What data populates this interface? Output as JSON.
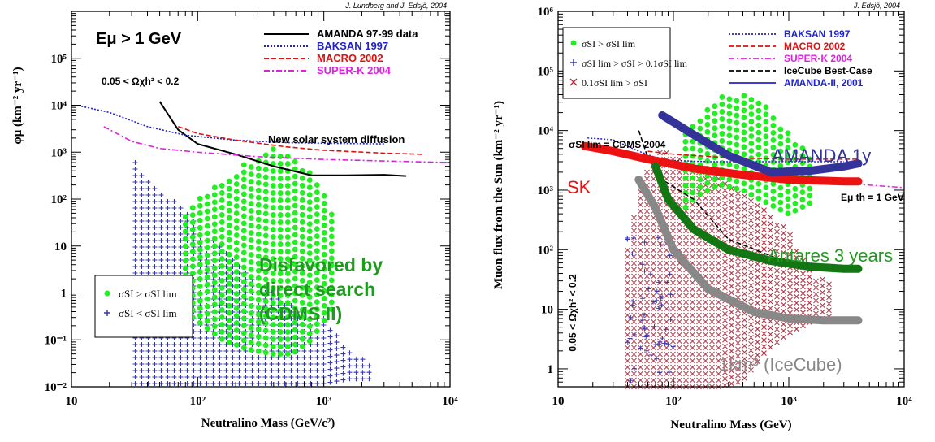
{
  "chart_data": [
    {
      "type": "scatter",
      "credit": "J. Lundberg and J. Edsjö, 2004",
      "ylabel": "φμ (km⁻² yr⁻¹)",
      "xlabel": "Neutralino Mass (GeV/c²)",
      "xscale": "log",
      "yscale": "log",
      "xlim": [
        10,
        10000
      ],
      "ylim": [
        0.01,
        1000000
      ],
      "xticks": [
        {
          "v": 10,
          "label": "10"
        },
        {
          "v": 100,
          "label": "10²"
        },
        {
          "v": 1000,
          "label": "10³"
        },
        {
          "v": 10000,
          "label": "10⁴"
        }
      ],
      "yticks": [
        {
          "v": 0.01,
          "label": "10⁻²"
        },
        {
          "v": 0.1,
          "label": "10⁻¹"
        },
        {
          "v": 1,
          "label": "1"
        },
        {
          "v": 10,
          "label": "10"
        },
        {
          "v": 100,
          "label": "10²"
        },
        {
          "v": 1000,
          "label": "10³"
        },
        {
          "v": 10000,
          "label": "10⁴"
        },
        {
          "v": 100000,
          "label": "10⁵"
        }
      ],
      "annotations": [
        {
          "id": "ethr",
          "text": "Eμ > 1 GeV"
        },
        {
          "id": "omega",
          "text": "0.05 < Ωχh² < 0.2"
        },
        {
          "id": "diffusion",
          "text": "New solar system diffusion"
        },
        {
          "id": "disfavored",
          "text": "Disfavored by direct search (CDMS II)",
          "lines": [
            "Disfavored by",
            "direct search",
            "(CDMS II)"
          ],
          "color": "#1e9b1e"
        }
      ],
      "legend_top": [
        {
          "name": "AMANDA 97-99 data",
          "color": "#000000",
          "style": "solid"
        },
        {
          "name": "BAKSAN 1997",
          "color": "#2222cc",
          "style": "dotted"
        },
        {
          "name": "MACRO 2002",
          "color": "#dd1111",
          "style": "dashed"
        },
        {
          "name": "SUPER-K 2004",
          "color": "#dd22dd",
          "style": "dashdot"
        }
      ],
      "legend_bottom": [
        {
          "name": "σSI > σSI lim",
          "marker": "dot",
          "color": "#22ee22"
        },
        {
          "name": "σSI < σSI lim",
          "marker": "plus",
          "color": "#3333aa"
        }
      ],
      "series": [
        {
          "name": "AMANDA 97-99 data",
          "color": "#000000",
          "points": [
            [
              50,
              12000
            ],
            [
              70,
              3000
            ],
            [
              100,
              1500
            ],
            [
              200,
              900
            ],
            [
              400,
              500
            ],
            [
              800,
              320
            ],
            [
              1500,
              320
            ],
            [
              3000,
              330
            ],
            [
              4500,
              310
            ]
          ]
        },
        {
          "name": "BAKSAN 1997",
          "color": "#2222cc",
          "points": [
            [
              12,
              9500
            ],
            [
              20,
              7000
            ],
            [
              40,
              3500
            ],
            [
              80,
              2300
            ],
            [
              200,
              1800
            ],
            [
              500,
              1600
            ],
            [
              1000,
              1550
            ],
            [
              3000,
              1500
            ]
          ]
        },
        {
          "name": "MACRO 2002",
          "color": "#dd1111",
          "points": [
            [
              70,
              3500
            ],
            [
              100,
              2500
            ],
            [
              200,
              1800
            ],
            [
              500,
              1300
            ],
            [
              1000,
              1100
            ],
            [
              3000,
              950
            ],
            [
              6000,
              900
            ]
          ]
        },
        {
          "name": "SUPER-K 2004",
          "color": "#dd22dd",
          "points": [
            [
              18,
              3500
            ],
            [
              30,
              1700
            ],
            [
              50,
              1200
            ],
            [
              100,
              1000
            ],
            [
              300,
              800
            ],
            [
              1000,
              700
            ],
            [
              3000,
              650
            ],
            [
              10000,
              600
            ]
          ]
        }
      ]
    },
    {
      "type": "scatter",
      "credit": "J. Edsjö, 2004",
      "ylabel": "Muon flux from the Sun (km⁻² yr⁻¹)",
      "xlabel": "Neutralino Mass (GeV)",
      "xscale": "log",
      "yscale": "log",
      "xlim": [
        10,
        10000
      ],
      "ylim": [
        0.5,
        1000000
      ],
      "xticks": [
        {
          "v": 10,
          "label": "10"
        },
        {
          "v": 100,
          "label": "10²"
        },
        {
          "v": 1000,
          "label": "10³"
        },
        {
          "v": 10000,
          "label": "10⁴"
        }
      ],
      "yticks": [
        {
          "v": 1,
          "label": "1"
        },
        {
          "v": 10,
          "label": "10"
        },
        {
          "v": 100,
          "label": "10²"
        },
        {
          "v": 1000,
          "label": "10³"
        },
        {
          "v": 10000,
          "label": "10⁴"
        },
        {
          "v": 100000,
          "label": "10⁵"
        },
        {
          "v": 1000000,
          "label": "10⁶"
        }
      ],
      "annotations": [
        {
          "id": "cdms",
          "text": "σSI lim = CDMS 2004"
        },
        {
          "id": "ethr",
          "text": "Eμ th = 1 GeV"
        },
        {
          "id": "omega",
          "text": "0.05 < Ωχh² < 0.2"
        }
      ],
      "legend_left": [
        {
          "name": "σSI > σSI lim",
          "marker": "dot",
          "color": "#22ee22"
        },
        {
          "name": "σSI lim > σSI > 0.1σSI lim",
          "marker": "plus",
          "color": "#3333aa"
        },
        {
          "name": "0.1σSI lim > σSI",
          "marker": "cross",
          "color": "#bb2233"
        }
      ],
      "legend_right": [
        {
          "name": "BAKSAN 1997",
          "color": "#2222cc",
          "style": "dotted"
        },
        {
          "name": "MACRO 2002",
          "color": "#dd1111",
          "style": "dashed"
        },
        {
          "name": "SUPER-K 2004",
          "color": "#dd22dd",
          "style": "dashdot"
        },
        {
          "name": "IceCube Best-Case",
          "color": "#000000",
          "style": "dashed"
        },
        {
          "name": "AMANDA-II, 2001",
          "color": "#2222cc",
          "style": "solid"
        }
      ],
      "series": [
        {
          "name": "BAKSAN 1997",
          "color": "#2222cc",
          "points": [
            [
              18,
              7500
            ],
            [
              30,
              7000
            ],
            [
              50,
              4500
            ],
            [
              80,
              3200
            ],
            [
              200,
              3000
            ],
            [
              800,
              3000
            ],
            [
              3000,
              3000
            ]
          ]
        },
        {
          "name": "MACRO 2002",
          "color": "#dd1111",
          "points": [
            [
              60,
              4500
            ],
            [
              100,
              4000
            ],
            [
              300,
              3500
            ],
            [
              1000,
              3300
            ],
            [
              4000,
              3300
            ]
          ]
        },
        {
          "name": "SUPER-K 2004",
          "color": "#dd22dd",
          "points": [
            [
              100,
              2500
            ],
            [
              300,
              2000
            ],
            [
              1000,
              1500
            ],
            [
              3000,
              1300
            ],
            [
              10000,
              1100
            ]
          ]
        },
        {
          "name": "IceCube Best-Case",
          "color": "#000000",
          "points": [
            [
              50,
              10000
            ],
            [
              60,
              3500
            ],
            [
              80,
              1500
            ],
            [
              150,
              700
            ],
            [
              300,
              150
            ],
            [
              1000,
              60
            ],
            [
              4000,
              45
            ]
          ]
        },
        {
          "name": "AMANDA-II, 2001",
          "color": "#2222cc",
          "points": [
            [
              80,
              18000
            ],
            [
              150,
              9000
            ],
            [
              300,
              4000
            ],
            [
              700,
              2000
            ],
            [
              1500,
              2100
            ],
            [
              4000,
              2800
            ]
          ]
        },
        {
          "name": "SK",
          "color": "#ee1111",
          "label": "SK",
          "points": [
            [
              17,
              5500
            ],
            [
              30,
              4500
            ],
            [
              60,
              3300
            ],
            [
              150,
              2300
            ],
            [
              400,
              1800
            ],
            [
              1000,
              1500
            ],
            [
              3000,
              1400
            ],
            [
              4000,
              1400
            ]
          ]
        },
        {
          "name": "AMANDA 1y",
          "color": "#333399",
          "label": "AMANDA 1y",
          "points": [
            [
              80,
              18000
            ],
            [
              150,
              8500
            ],
            [
              300,
              3800
            ],
            [
              700,
              2000
            ],
            [
              1500,
              2100
            ],
            [
              3000,
              2500
            ],
            [
              4000,
              2800
            ]
          ]
        },
        {
          "name": "Antares 3 years",
          "color": "#127712",
          "label": "Antares 3 years",
          "points": [
            [
              70,
              2500
            ],
            [
              90,
              700
            ],
            [
              150,
              220
            ],
            [
              300,
              100
            ],
            [
              700,
              65
            ],
            [
              1500,
              52
            ],
            [
              3000,
              48
            ],
            [
              4000,
              48
            ]
          ]
        },
        {
          "name": "1km³ (IceCube)",
          "color": "#888888",
          "label": "1km³ (IceCube)",
          "points": [
            [
              50,
              1500
            ],
            [
              70,
              500
            ],
            [
              100,
              100
            ],
            [
              200,
              22
            ],
            [
              500,
              9
            ],
            [
              1000,
              7
            ],
            [
              2000,
              6.5
            ],
            [
              4000,
              6.5
            ]
          ]
        }
      ]
    }
  ]
}
